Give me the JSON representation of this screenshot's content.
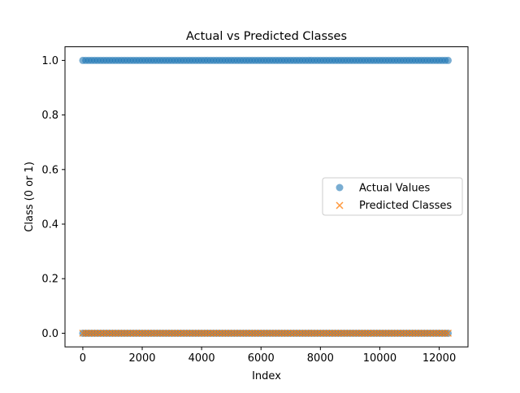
{
  "chart_data": {
    "type": "scatter",
    "title": "Actual vs Predicted Classes",
    "xlabel": "Index",
    "ylabel": "Class (0 or 1)",
    "xlim": [
      -600,
      12970
    ],
    "ylim": [
      -0.05,
      1.05
    ],
    "xticks": [
      0,
      2000,
      4000,
      6000,
      8000,
      10000,
      12000
    ],
    "xtick_labels": [
      "0",
      "2000",
      "4000",
      "6000",
      "8000",
      "10000",
      "12000"
    ],
    "yticks": [
      0.0,
      0.2,
      0.4,
      0.6,
      0.8,
      1.0
    ],
    "ytick_labels": [
      "0.0",
      "0.2",
      "0.4",
      "0.6",
      "0.8",
      "1.0"
    ],
    "grid": false,
    "legend_position": "center right",
    "x_range": [
      0,
      12370
    ],
    "series": [
      {
        "name": "Actual Values",
        "marker": "circle",
        "color": "#1f77b4",
        "alpha": 0.6,
        "segments": [
          {
            "y": 1,
            "x_from": 0,
            "x_to": 12370
          },
          {
            "y": 0,
            "x_from": 0,
            "x_to": 12370
          }
        ]
      },
      {
        "name": "Predicted Classes",
        "marker": "x",
        "color": "#ff7f0e",
        "alpha": 0.8,
        "segments": [
          {
            "y": 0,
            "x_from": 0,
            "x_to": 12370
          }
        ]
      }
    ]
  }
}
